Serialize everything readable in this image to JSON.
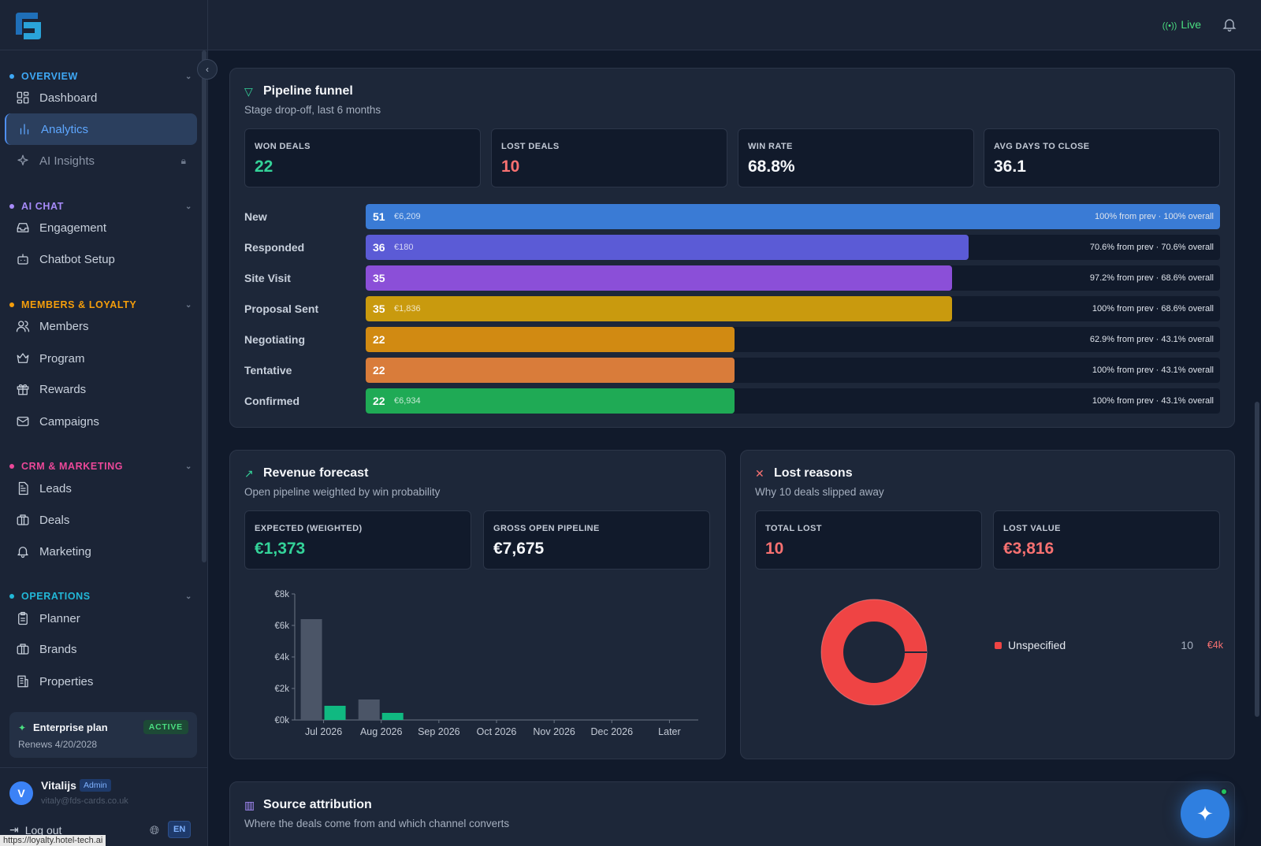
{
  "app": {
    "url_tooltip": "https://loyalty.hotel-tech.ai"
  },
  "topbar": {
    "live_label": "Live",
    "live_icon": "broadcast-icon",
    "bell_icon": "bell-icon"
  },
  "sidebar": {
    "sections": [
      {
        "label": "OVERVIEW",
        "color": "#3ea8f5"
      },
      {
        "label": "AI CHAT",
        "color": "#a78bfa"
      },
      {
        "label": "MEMBERS & LOYALTY",
        "color": "#f59e0b"
      },
      {
        "label": "CRM & MARKETING",
        "color": "#ec4899"
      },
      {
        "label": "OPERATIONS",
        "color": "#22b8d8"
      }
    ],
    "items": [
      {
        "label": "Dashboard",
        "icon": "dashboard-icon"
      },
      {
        "label": "Analytics",
        "icon": "analytics-icon",
        "active": true
      },
      {
        "label": "AI Insights",
        "icon": "sparkle-icon",
        "locked": true
      },
      {
        "label": "Engagement",
        "icon": "inbox-icon"
      },
      {
        "label": "Chatbot Setup",
        "icon": "bot-icon"
      },
      {
        "label": "Members",
        "icon": "users-icon"
      },
      {
        "label": "Program",
        "icon": "crown-icon"
      },
      {
        "label": "Rewards",
        "icon": "gift-icon"
      },
      {
        "label": "Campaigns",
        "icon": "mail-icon"
      },
      {
        "label": "Leads",
        "icon": "document-icon"
      },
      {
        "label": "Deals",
        "icon": "briefcase-icon"
      },
      {
        "label": "Marketing",
        "icon": "bell-icon"
      },
      {
        "label": "Planner",
        "icon": "clipboard-icon"
      },
      {
        "label": "Brands",
        "icon": "briefcase-icon"
      },
      {
        "label": "Properties",
        "icon": "building-icon"
      }
    ],
    "plan": {
      "title": "Enterprise plan",
      "badge": "ACTIVE",
      "renews": "Renews 4/20/2028"
    },
    "user": {
      "initial": "V",
      "name": "Vitalijs",
      "role": "Admin",
      "email": "vitaly@fds-cards.co.uk"
    },
    "logout_label": "Log out",
    "language": "EN"
  },
  "funnel": {
    "title": "Pipeline funnel",
    "subtitle": "Stage drop-off, last 6 months",
    "kpis": [
      {
        "label": "WON DEALS",
        "value": "22",
        "color": "#34d399"
      },
      {
        "label": "LOST DEALS",
        "value": "10",
        "color": "#f87171"
      },
      {
        "label": "WIN RATE",
        "value": "68.8%",
        "color": "#f5f7fa"
      },
      {
        "label": "AVG DAYS TO CLOSE",
        "value": "36.1",
        "color": "#f5f7fa"
      }
    ],
    "stages": [
      {
        "name": "New",
        "count": 51,
        "amount": "€6,209",
        "pct": "100% from prev · 100% overall",
        "color": "#3a7bd5"
      },
      {
        "name": "Responded",
        "count": 36,
        "amount": "€180",
        "pct": "70.6% from prev · 70.6% overall",
        "color": "#5b5bd6"
      },
      {
        "name": "Site Visit",
        "count": 35,
        "amount": "",
        "pct": "97.2% from prev · 68.6% overall",
        "color": "#8b4fd8"
      },
      {
        "name": "Proposal Sent",
        "count": 35,
        "amount": "€1,836",
        "pct": "100% from prev · 68.6% overall",
        "color": "#c99a0e"
      },
      {
        "name": "Negotiating",
        "count": 22,
        "amount": "",
        "pct": "62.9% from prev · 43.1% overall",
        "color": "#d18a12"
      },
      {
        "name": "Tentative",
        "count": 22,
        "amount": "",
        "pct": "100% from prev · 43.1% overall",
        "color": "#d97c3a"
      },
      {
        "name": "Confirmed",
        "count": 22,
        "amount": "€6,934",
        "pct": "100% from prev · 43.1% overall",
        "color": "#1faa55"
      }
    ]
  },
  "forecast": {
    "title": "Revenue forecast",
    "subtitle": "Open pipeline weighted by win probability",
    "kpis": [
      {
        "label": "EXPECTED (WEIGHTED)",
        "value": "€1,373",
        "color": "#34d399"
      },
      {
        "label": "GROSS OPEN PIPELINE",
        "value": "€7,675",
        "color": "#f5f7fa"
      }
    ]
  },
  "chart_data": {
    "type": "bar",
    "categories": [
      "Jul 2026",
      "Aug 2026",
      "Sep 2026",
      "Oct 2026",
      "Nov 2026",
      "Dec 2026",
      "Later"
    ],
    "series": [
      {
        "values": [
          6400,
          1300,
          0,
          0,
          0,
          0,
          0
        ],
        "color": "#4b5567"
      },
      {
        "values": [
          900,
          450,
          0,
          0,
          0,
          0,
          0
        ],
        "color": "#10b981"
      }
    ],
    "yticks": [
      "€0k",
      "€2k",
      "€4k",
      "€6k",
      "€8k"
    ],
    "ylim": [
      0,
      8000
    ],
    "legend": "none"
  },
  "lost": {
    "title": "Lost reasons",
    "subtitle": "Why 10 deals slipped away",
    "kpis": [
      {
        "label": "TOTAL LOST",
        "value": "10",
        "color": "#f87171"
      },
      {
        "label": "LOST VALUE",
        "value": "€3,816",
        "color": "#f87171"
      }
    ],
    "reasons": [
      {
        "label": "Unspecified",
        "count": "10",
        "value": "€4k",
        "color": "#ef4444",
        "share": 1.0
      }
    ]
  },
  "source": {
    "title": "Source attribution",
    "subtitle": "Where the deals come from and which channel converts"
  }
}
